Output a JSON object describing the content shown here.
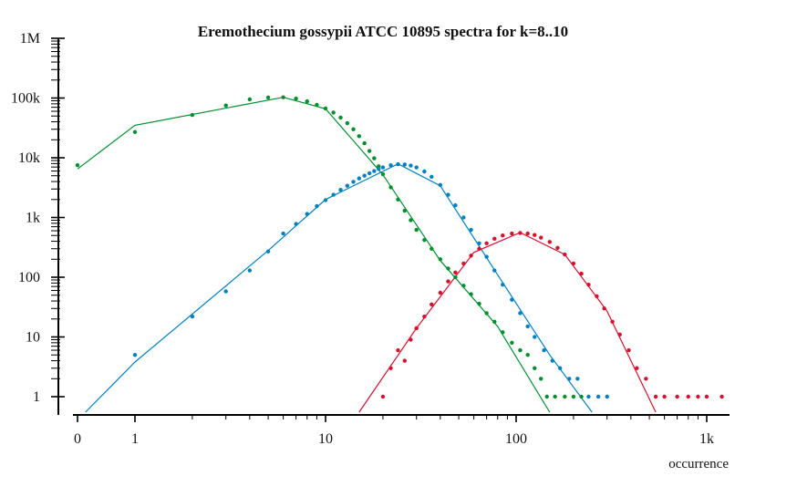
{
  "chart_data": {
    "type": "scatter",
    "title": "Eremothecium gossypii ATCC 10895 spectra for k=8..10",
    "xlabel": "occurrence",
    "ylabel": "",
    "xscale": "log (0 shown at left)",
    "yscale": "log",
    "xlim": [
      0,
      1300
    ],
    "ylim": [
      0.5,
      1000000
    ],
    "x_ticks": [
      {
        "value": 0,
        "label": "0"
      },
      {
        "value": 1,
        "label": "1"
      },
      {
        "value": 10,
        "label": "10"
      },
      {
        "value": 100,
        "label": "100"
      },
      {
        "value": 1000,
        "label": "1k"
      }
    ],
    "y_ticks": [
      {
        "value": 1,
        "label": "1"
      },
      {
        "value": 10,
        "label": "10"
      },
      {
        "value": 100,
        "label": "100"
      },
      {
        "value": 1000,
        "label": "1k"
      },
      {
        "value": 10000,
        "label": "10k"
      },
      {
        "value": 100000,
        "label": "100k"
      },
      {
        "value": 1000000,
        "label": "1M"
      }
    ],
    "grid": false,
    "legend": "none",
    "series": [
      {
        "color": "#008f2e",
        "points": [
          [
            0,
            7500
          ],
          [
            1,
            27000
          ],
          [
            2,
            52000
          ],
          [
            3,
            75000
          ],
          [
            4,
            95000
          ],
          [
            5,
            102000
          ],
          [
            6,
            103000
          ],
          [
            7,
            98000
          ],
          [
            8,
            88000
          ],
          [
            9,
            77000
          ],
          [
            10,
            67000
          ],
          [
            11,
            57000
          ],
          [
            12,
            47000
          ],
          [
            13,
            38000
          ],
          [
            14,
            30000
          ],
          [
            15,
            23000
          ],
          [
            16,
            17500
          ],
          [
            17,
            13000
          ],
          [
            18,
            9800
          ],
          [
            19,
            7200
          ],
          [
            20,
            5300
          ],
          [
            22,
            3200
          ],
          [
            24,
            2000
          ],
          [
            26,
            1300
          ],
          [
            28,
            900
          ],
          [
            30,
            620
          ],
          [
            33,
            420
          ],
          [
            36,
            300
          ],
          [
            40,
            200
          ],
          [
            44,
            140
          ],
          [
            48,
            100
          ],
          [
            53,
            72
          ],
          [
            58,
            52
          ],
          [
            64,
            36
          ],
          [
            70,
            25
          ],
          [
            77,
            18
          ],
          [
            85,
            12
          ],
          [
            95,
            8
          ],
          [
            105,
            6
          ],
          [
            115,
            5
          ],
          [
            125,
            3
          ],
          [
            135,
            2
          ],
          [
            145,
            1
          ],
          [
            160,
            1
          ],
          [
            180,
            1
          ],
          [
            200,
            1
          ],
          [
            220,
            1
          ]
        ],
        "fit_line": [
          [
            0,
            6500
          ],
          [
            1,
            35000
          ],
          [
            6,
            103000
          ],
          [
            10,
            66000
          ],
          [
            20,
            5200
          ],
          [
            40,
            190
          ],
          [
            80,
            15
          ],
          [
            150,
            0.55
          ]
        ]
      },
      {
        "color": "#0080c0",
        "points": [
          [
            1,
            5
          ],
          [
            2,
            22
          ],
          [
            3,
            58
          ],
          [
            4,
            130
          ],
          [
            5,
            270
          ],
          [
            6,
            540
          ],
          [
            7,
            780
          ],
          [
            8,
            1150
          ],
          [
            9,
            1550
          ],
          [
            10,
            1950
          ],
          [
            11,
            2400
          ],
          [
            12,
            2900
          ],
          [
            13,
            3400
          ],
          [
            14,
            3950
          ],
          [
            15,
            4500
          ],
          [
            16,
            5000
          ],
          [
            17,
            5500
          ],
          [
            18,
            6000
          ],
          [
            19,
            6500
          ],
          [
            20,
            6900
          ],
          [
            22,
            7500
          ],
          [
            24,
            7800
          ],
          [
            26,
            7700
          ],
          [
            28,
            7400
          ],
          [
            30,
            6900
          ],
          [
            33,
            5900
          ],
          [
            36,
            4800
          ],
          [
            40,
            3500
          ],
          [
            44,
            2400
          ],
          [
            48,
            1600
          ],
          [
            53,
            1000
          ],
          [
            58,
            620
          ],
          [
            64,
            370
          ],
          [
            70,
            220
          ],
          [
            77,
            130
          ],
          [
            85,
            75
          ],
          [
            95,
            42
          ],
          [
            105,
            25
          ],
          [
            115,
            15
          ],
          [
            125,
            10
          ],
          [
            140,
            6
          ],
          [
            155,
            4
          ],
          [
            170,
            3
          ],
          [
            190,
            2
          ],
          [
            210,
            2
          ],
          [
            240,
            1
          ],
          [
            270,
            1
          ],
          [
            300,
            1
          ]
        ],
        "fit_line": [
          [
            0.55,
            0.55
          ],
          [
            1,
            3.8
          ],
          [
            5,
            280
          ],
          [
            10,
            2000
          ],
          [
            24,
            7900
          ],
          [
            40,
            3400
          ],
          [
            80,
            110
          ],
          [
            150,
            5
          ],
          [
            250,
            0.55
          ]
        ]
      },
      {
        "color": "#d8102c",
        "points": [
          [
            20,
            1
          ],
          [
            22,
            3
          ],
          [
            24,
            6
          ],
          [
            26,
            4
          ],
          [
            28,
            9
          ],
          [
            30,
            14
          ],
          [
            33,
            22
          ],
          [
            36,
            35
          ],
          [
            40,
            55
          ],
          [
            44,
            85
          ],
          [
            48,
            120
          ],
          [
            53,
            170
          ],
          [
            58,
            230
          ],
          [
            64,
            300
          ],
          [
            70,
            370
          ],
          [
            77,
            440
          ],
          [
            85,
            500
          ],
          [
            95,
            540
          ],
          [
            105,
            550
          ],
          [
            115,
            540
          ],
          [
            125,
            510
          ],
          [
            135,
            460
          ],
          [
            150,
            390
          ],
          [
            165,
            310
          ],
          [
            180,
            240
          ],
          [
            200,
            170
          ],
          [
            220,
            115
          ],
          [
            240,
            75
          ],
          [
            265,
            48
          ],
          [
            290,
            30
          ],
          [
            320,
            18
          ],
          [
            350,
            11
          ],
          [
            390,
            6
          ],
          [
            430,
            3
          ],
          [
            480,
            2
          ],
          [
            540,
            1
          ],
          [
            600,
            1
          ],
          [
            700,
            1
          ],
          [
            800,
            1
          ],
          [
            900,
            1
          ],
          [
            1000,
            1
          ],
          [
            1200,
            1
          ]
        ],
        "fit_line": [
          [
            15,
            0.55
          ],
          [
            30,
            14
          ],
          [
            60,
            260
          ],
          [
            105,
            560
          ],
          [
            180,
            240
          ],
          [
            300,
            27
          ],
          [
            540,
            0.55
          ]
        ]
      }
    ]
  }
}
